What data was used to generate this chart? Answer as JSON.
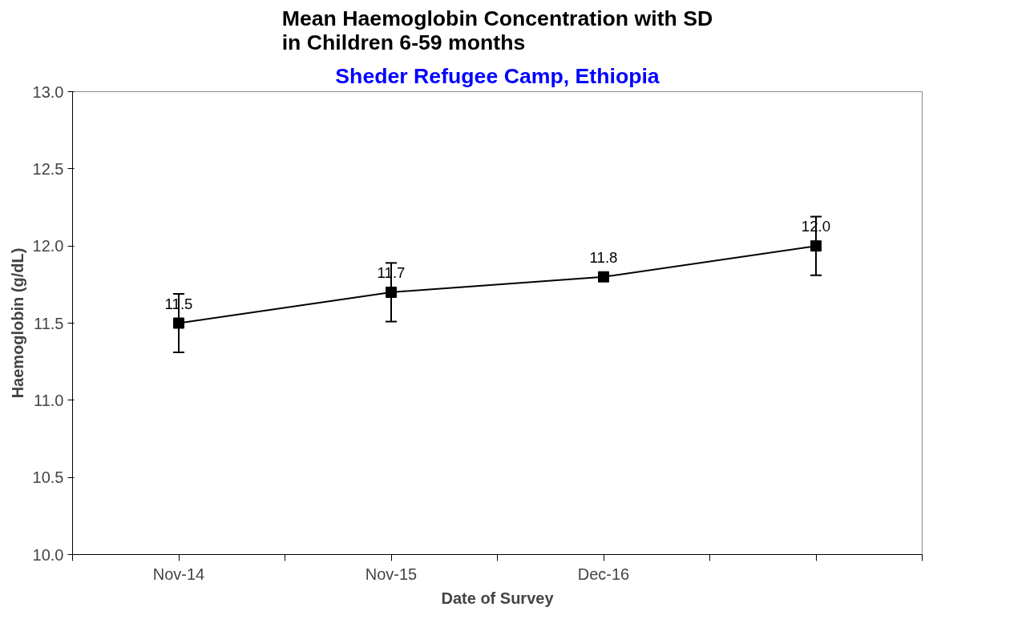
{
  "chart_data": {
    "type": "line",
    "title": "Mean Haemoglobin Concentration with SD\nin Children 6-59 months",
    "subtitle": "Sheder Refugee Camp, Ethiopia",
    "xlabel": "Date of Survey",
    "ylabel": "Haemoglobin (g/dL)",
    "categories": [
      "Nov-14",
      "Nov-15",
      "Dec-16",
      null
    ],
    "series": [
      {
        "color": "#000000",
        "values": [
          11.5,
          11.7,
          11.8,
          12.0
        ],
        "errors": [
          0.19,
          0.19,
          null,
          0.19
        ]
      }
    ],
    "ylim": [
      10.0,
      13.0
    ],
    "yticks": [
      {
        "value": 10,
        "label": "10.0"
      },
      {
        "value": 10.5,
        "label": "10.5"
      },
      {
        "value": 11,
        "label": "11.0"
      },
      {
        "value": 11.5,
        "label": "11.5"
      },
      {
        "value": 12,
        "label": "12.0"
      },
      {
        "value": 12.5,
        "label": "12.5"
      },
      {
        "value": 13,
        "label": "13.0"
      }
    ],
    "value_labels": [
      "11.5",
      "11.7",
      "11.8",
      "12.0"
    ],
    "marker": "square",
    "line_style": "solid",
    "grid": false
  }
}
